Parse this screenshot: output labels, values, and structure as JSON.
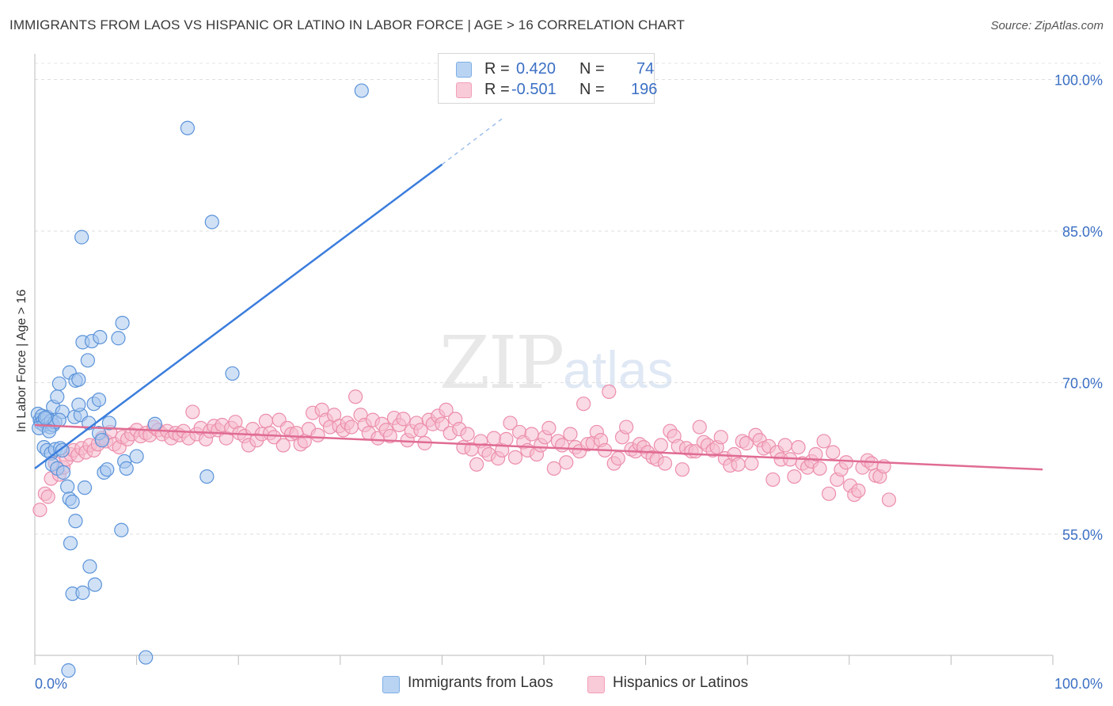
{
  "header": {
    "title": "IMMIGRANTS FROM LAOS VS HISPANIC OR LATINO IN LABOR FORCE | AGE > 16 CORRELATION CHART",
    "source": "Source: ZipAtlas.com"
  },
  "watermark": {
    "zip": "ZIP",
    "atlas": "atlas"
  },
  "legend_top": {
    "rows": [
      {
        "r_label": "R =",
        "r_value": "0.420",
        "n_label": "N =",
        "n_value": "74",
        "color": "#7eaee6"
      },
      {
        "r_label": "R =",
        "r_value": "-0.501",
        "n_label": "N =",
        "n_value": "196",
        "color": "#f2a0b8"
      }
    ]
  },
  "legend_bottom": {
    "items": [
      {
        "label": "Immigrants from Laos",
        "color": "#7eaee6"
      },
      {
        "label": "Hispanics or Latinos",
        "color": "#f2a0b8"
      }
    ]
  },
  "chart_data": {
    "type": "scatter",
    "title": "IMMIGRANTS FROM LAOS VS HISPANIC OR LATINO IN LABOR FORCE | AGE > 16 CORRELATION CHART",
    "xlabel": "",
    "ylabel": "In Labor Force | Age > 16",
    "xlim": [
      0,
      100
    ],
    "ylim": [
      43,
      102
    ],
    "x_tick_labels": [
      "0.0%",
      "100.0%"
    ],
    "y_ticks": [
      55,
      70,
      85,
      100
    ],
    "y_tick_labels": [
      "55.0%",
      "70.0%",
      "85.0%",
      "100.0%"
    ],
    "grid": true,
    "legend_position": "top-center",
    "series": [
      {
        "name": "Immigrants from Laos",
        "color": "#3b7ddd",
        "fill": "#a9c8ee",
        "R": 0.42,
        "N": 74,
        "trend": {
          "x0": 0,
          "y0": 61.5,
          "x1": 40.0,
          "y1": 91.6,
          "dash_x1": 46.0,
          "dash_y1": 96.2
        },
        "points": [
          [
            0.3,
            66.9
          ],
          [
            0.5,
            66.3
          ],
          [
            0.6,
            66.0
          ],
          [
            0.7,
            66.7
          ],
          [
            0.8,
            66.2
          ],
          [
            0.9,
            65.8
          ],
          [
            1.0,
            66.1
          ],
          [
            1.1,
            66.4
          ],
          [
            1.2,
            66.6
          ],
          [
            1.3,
            65.9
          ],
          [
            1.5,
            65.6
          ],
          [
            1.6,
            66.2
          ],
          [
            1.8,
            65.8
          ],
          [
            2.0,
            66.1
          ],
          [
            0.4,
            65.5
          ],
          [
            1.4,
            65.2
          ],
          [
            0.9,
            63.6
          ],
          [
            1.2,
            63.3
          ],
          [
            1.6,
            63.0
          ],
          [
            1.7,
            61.9
          ],
          [
            2.0,
            63.4
          ],
          [
            2.2,
            61.5
          ],
          [
            2.5,
            63.5
          ],
          [
            2.7,
            63.3
          ],
          [
            2.8,
            61.1
          ],
          [
            1.8,
            67.6
          ],
          [
            2.2,
            68.6
          ],
          [
            2.4,
            69.9
          ],
          [
            2.7,
            67.1
          ],
          [
            3.4,
            71.0
          ],
          [
            3.9,
            66.6
          ],
          [
            4.0,
            70.2
          ],
          [
            4.3,
            70.3
          ],
          [
            4.5,
            66.8
          ],
          [
            4.3,
            67.8
          ],
          [
            4.6,
            84.4
          ],
          [
            4.7,
            74.0
          ],
          [
            5.2,
            72.2
          ],
          [
            5.3,
            66.0
          ],
          [
            5.6,
            74.1
          ],
          [
            5.8,
            67.9
          ],
          [
            6.3,
            68.3
          ],
          [
            6.4,
            74.5
          ],
          [
            6.3,
            65.0
          ],
          [
            6.6,
            64.3
          ],
          [
            6.8,
            61.1
          ],
          [
            7.1,
            61.4
          ],
          [
            7.3,
            66.0
          ],
          [
            8.2,
            74.4
          ],
          [
            8.6,
            75.9
          ],
          [
            8.8,
            62.2
          ],
          [
            9.0,
            61.5
          ],
          [
            10.0,
            62.7
          ],
          [
            11.8,
            65.9
          ],
          [
            3.2,
            59.7
          ],
          [
            3.4,
            58.5
          ],
          [
            3.7,
            58.2
          ],
          [
            4.0,
            56.3
          ],
          [
            4.9,
            59.6
          ],
          [
            5.4,
            51.8
          ],
          [
            5.9,
            50.0
          ],
          [
            3.5,
            54.1
          ],
          [
            3.7,
            49.1
          ],
          [
            4.7,
            49.2
          ],
          [
            8.5,
            55.4
          ],
          [
            10.9,
            42.8
          ],
          [
            3.3,
            41.5
          ],
          [
            15.0,
            95.2
          ],
          [
            16.9,
            60.7
          ],
          [
            17.4,
            85.9
          ],
          [
            19.4,
            70.9
          ],
          [
            32.1,
            98.9
          ],
          [
            1.0,
            66.5
          ],
          [
            2.4,
            66.3
          ]
        ]
      },
      {
        "name": "Hispanics or Latinos",
        "color": "#e06c93",
        "fill": "#f6bccd",
        "R": -0.501,
        "N": 196,
        "trend": {
          "x0": 0,
          "y0": 65.8,
          "x1": 99.0,
          "y1": 61.4
        },
        "points": [
          [
            0.5,
            57.4
          ],
          [
            1.0,
            59.0
          ],
          [
            1.3,
            58.7
          ],
          [
            1.6,
            60.5
          ],
          [
            2.0,
            62.0
          ],
          [
            2.4,
            60.9
          ],
          [
            2.8,
            61.6
          ],
          [
            3.1,
            62.4
          ],
          [
            3.5,
            62.9
          ],
          [
            3.8,
            63.3
          ],
          [
            4.2,
            62.8
          ],
          [
            4.6,
            63.5
          ],
          [
            5.0,
            63.1
          ],
          [
            5.4,
            63.8
          ],
          [
            5.8,
            63.3
          ],
          [
            6.2,
            63.9
          ],
          [
            6.6,
            64.5
          ],
          [
            7.0,
            64.2
          ],
          [
            7.4,
            65.1
          ],
          [
            7.8,
            63.9
          ],
          [
            8.3,
            63.6
          ],
          [
            8.6,
            64.6
          ],
          [
            9.1,
            64.4
          ],
          [
            9.5,
            64.9
          ],
          [
            10.0,
            65.3
          ],
          [
            10.4,
            64.7
          ],
          [
            10.9,
            65.0
          ],
          [
            11.3,
            64.8
          ],
          [
            11.7,
            65.6
          ],
          [
            12.1,
            65.3
          ],
          [
            12.5,
            64.9
          ],
          [
            13.0,
            65.2
          ],
          [
            13.4,
            64.5
          ],
          [
            13.8,
            65.0
          ],
          [
            14.2,
            64.8
          ],
          [
            14.6,
            65.2
          ],
          [
            15.1,
            64.5
          ],
          [
            15.5,
            67.1
          ],
          [
            15.9,
            64.9
          ],
          [
            16.3,
            65.5
          ],
          [
            16.8,
            64.4
          ],
          [
            17.2,
            65.2
          ],
          [
            17.6,
            65.7
          ],
          [
            18.0,
            65.3
          ],
          [
            18.4,
            65.8
          ],
          [
            18.8,
            64.5
          ],
          [
            19.3,
            65.5
          ],
          [
            19.7,
            66.1
          ],
          [
            20.1,
            65.0
          ],
          [
            20.6,
            64.7
          ],
          [
            21.0,
            63.8
          ],
          [
            21.4,
            65.4
          ],
          [
            21.8,
            64.3
          ],
          [
            22.3,
            64.9
          ],
          [
            22.7,
            66.2
          ],
          [
            23.1,
            65.0
          ],
          [
            23.5,
            64.6
          ],
          [
            24.0,
            66.3
          ],
          [
            24.4,
            63.8
          ],
          [
            24.8,
            65.5
          ],
          [
            25.2,
            64.9
          ],
          [
            25.7,
            65.0
          ],
          [
            26.1,
            63.9
          ],
          [
            26.5,
            64.2
          ],
          [
            26.9,
            65.4
          ],
          [
            27.3,
            67.0
          ],
          [
            27.8,
            64.8
          ],
          [
            28.2,
            67.3
          ],
          [
            28.6,
            66.3
          ],
          [
            29.0,
            65.6
          ],
          [
            29.4,
            66.8
          ],
          [
            29.9,
            65.7
          ],
          [
            30.3,
            65.3
          ],
          [
            30.7,
            66.0
          ],
          [
            31.1,
            65.6
          ],
          [
            31.5,
            68.6
          ],
          [
            32.0,
            66.8
          ],
          [
            32.4,
            65.8
          ],
          [
            32.8,
            65.0
          ],
          [
            33.2,
            66.3
          ],
          [
            33.7,
            64.5
          ],
          [
            34.1,
            65.9
          ],
          [
            34.5,
            65.3
          ],
          [
            34.9,
            64.7
          ],
          [
            35.3,
            66.5
          ],
          [
            35.8,
            65.8
          ],
          [
            36.2,
            66.4
          ],
          [
            36.6,
            64.3
          ],
          [
            37.0,
            65.2
          ],
          [
            37.5,
            66.0
          ],
          [
            37.9,
            65.3
          ],
          [
            38.3,
            64.0
          ],
          [
            38.7,
            66.3
          ],
          [
            39.1,
            65.9
          ],
          [
            39.6,
            66.7
          ],
          [
            40.0,
            65.9
          ],
          [
            40.4,
            67.3
          ],
          [
            40.8,
            65.0
          ],
          [
            41.3,
            66.4
          ],
          [
            41.7,
            65.4
          ],
          [
            42.1,
            63.6
          ],
          [
            42.5,
            64.9
          ],
          [
            42.9,
            63.4
          ],
          [
            43.4,
            61.9
          ],
          [
            43.8,
            64.2
          ],
          [
            44.2,
            63.3
          ],
          [
            44.6,
            62.9
          ],
          [
            45.1,
            64.5
          ],
          [
            45.5,
            62.5
          ],
          [
            45.9,
            63.3
          ],
          [
            46.3,
            64.4
          ],
          [
            46.7,
            66.0
          ],
          [
            47.2,
            62.6
          ],
          [
            47.6,
            65.1
          ],
          [
            48.0,
            64.1
          ],
          [
            48.4,
            63.3
          ],
          [
            48.8,
            64.9
          ],
          [
            49.3,
            62.9
          ],
          [
            49.7,
            63.8
          ],
          [
            50.1,
            64.6
          ],
          [
            50.5,
            65.5
          ],
          [
            51.0,
            61.5
          ],
          [
            51.4,
            64.2
          ],
          [
            51.8,
            63.8
          ],
          [
            52.2,
            62.1
          ],
          [
            52.6,
            64.9
          ],
          [
            53.1,
            63.6
          ],
          [
            53.5,
            63.2
          ],
          [
            53.9,
            67.9
          ],
          [
            54.3,
            63.9
          ],
          [
            54.8,
            64.0
          ],
          [
            55.2,
            65.1
          ],
          [
            55.6,
            64.3
          ],
          [
            56.0,
            63.3
          ],
          [
            56.4,
            69.1
          ],
          [
            56.9,
            62.0
          ],
          [
            57.3,
            62.5
          ],
          [
            57.7,
            64.6
          ],
          [
            58.1,
            65.6
          ],
          [
            58.6,
            63.4
          ],
          [
            59.0,
            63.2
          ],
          [
            59.4,
            63.9
          ],
          [
            59.8,
            63.6
          ],
          [
            60.2,
            63.1
          ],
          [
            60.7,
            62.6
          ],
          [
            61.1,
            62.4
          ],
          [
            61.5,
            63.8
          ],
          [
            61.9,
            62.0
          ],
          [
            62.4,
            65.2
          ],
          [
            62.8,
            64.7
          ],
          [
            63.2,
            63.7
          ],
          [
            63.6,
            61.4
          ],
          [
            64.0,
            63.5
          ],
          [
            64.5,
            63.2
          ],
          [
            64.9,
            63.2
          ],
          [
            65.3,
            65.6
          ],
          [
            65.7,
            64.1
          ],
          [
            66.1,
            63.8
          ],
          [
            66.6,
            63.3
          ],
          [
            67.0,
            63.6
          ],
          [
            67.4,
            64.6
          ],
          [
            67.8,
            62.5
          ],
          [
            68.3,
            61.8
          ],
          [
            68.7,
            62.9
          ],
          [
            69.1,
            61.9
          ],
          [
            69.5,
            64.2
          ],
          [
            69.9,
            64.0
          ],
          [
            70.4,
            62.0
          ],
          [
            70.8,
            64.8
          ],
          [
            71.2,
            64.3
          ],
          [
            71.6,
            63.5
          ],
          [
            72.1,
            63.7
          ],
          [
            72.5,
            60.4
          ],
          [
            72.9,
            63.1
          ],
          [
            73.3,
            62.4
          ],
          [
            73.7,
            63.8
          ],
          [
            74.2,
            62.4
          ],
          [
            74.6,
            60.7
          ],
          [
            75.0,
            63.6
          ],
          [
            75.4,
            62.0
          ],
          [
            75.9,
            61.6
          ],
          [
            76.3,
            62.2
          ],
          [
            76.7,
            62.9
          ],
          [
            77.1,
            61.5
          ],
          [
            77.5,
            64.2
          ],
          [
            78.0,
            59.0
          ],
          [
            78.4,
            63.1
          ],
          [
            78.8,
            60.4
          ],
          [
            79.2,
            61.4
          ],
          [
            79.7,
            62.1
          ],
          [
            80.1,
            59.8
          ],
          [
            80.5,
            58.9
          ],
          [
            80.9,
            59.3
          ],
          [
            81.3,
            61.6
          ],
          [
            81.8,
            62.3
          ],
          [
            82.2,
            62.0
          ],
          [
            82.6,
            60.8
          ],
          [
            83.0,
            60.7
          ],
          [
            83.4,
            61.7
          ],
          [
            83.9,
            58.4
          ]
        ]
      }
    ]
  }
}
